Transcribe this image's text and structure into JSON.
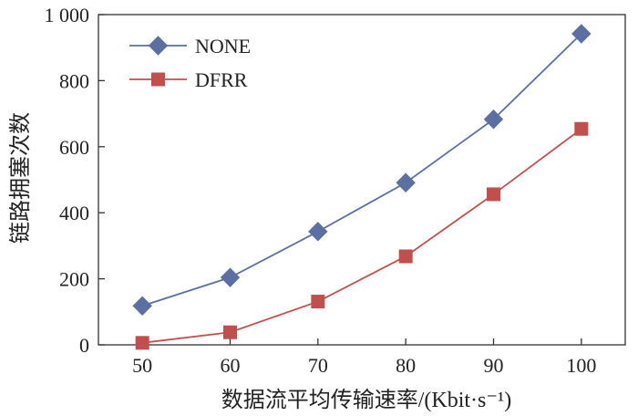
{
  "chart_data": {
    "type": "line",
    "categories": [
      "50",
      "60",
      "70",
      "80",
      "90",
      "100"
    ],
    "x": [
      50,
      60,
      70,
      80,
      90,
      100
    ],
    "series": [
      {
        "name": "NONE",
        "values": [
          118,
          204,
          343,
          491,
          683,
          942
        ],
        "color": "#5b6fa3",
        "marker": "diamond"
      },
      {
        "name": "DFRR",
        "values": [
          6,
          38,
          131,
          268,
          456,
          654
        ],
        "color": "#c0504d",
        "marker": "square"
      }
    ],
    "xlabel": "数据流平均传输速率/(Kbit·s⁻¹)",
    "ylabel": "链路拥塞次数",
    "xlim": [
      45,
      105
    ],
    "ylim": [
      0,
      1000
    ],
    "yticks": [
      0,
      200,
      400,
      600,
      800,
      1000
    ],
    "ytick_labels": [
      "0",
      "200",
      "400",
      "600",
      "800",
      "1 000"
    ],
    "grid": false,
    "legend_position": "top-left"
  }
}
